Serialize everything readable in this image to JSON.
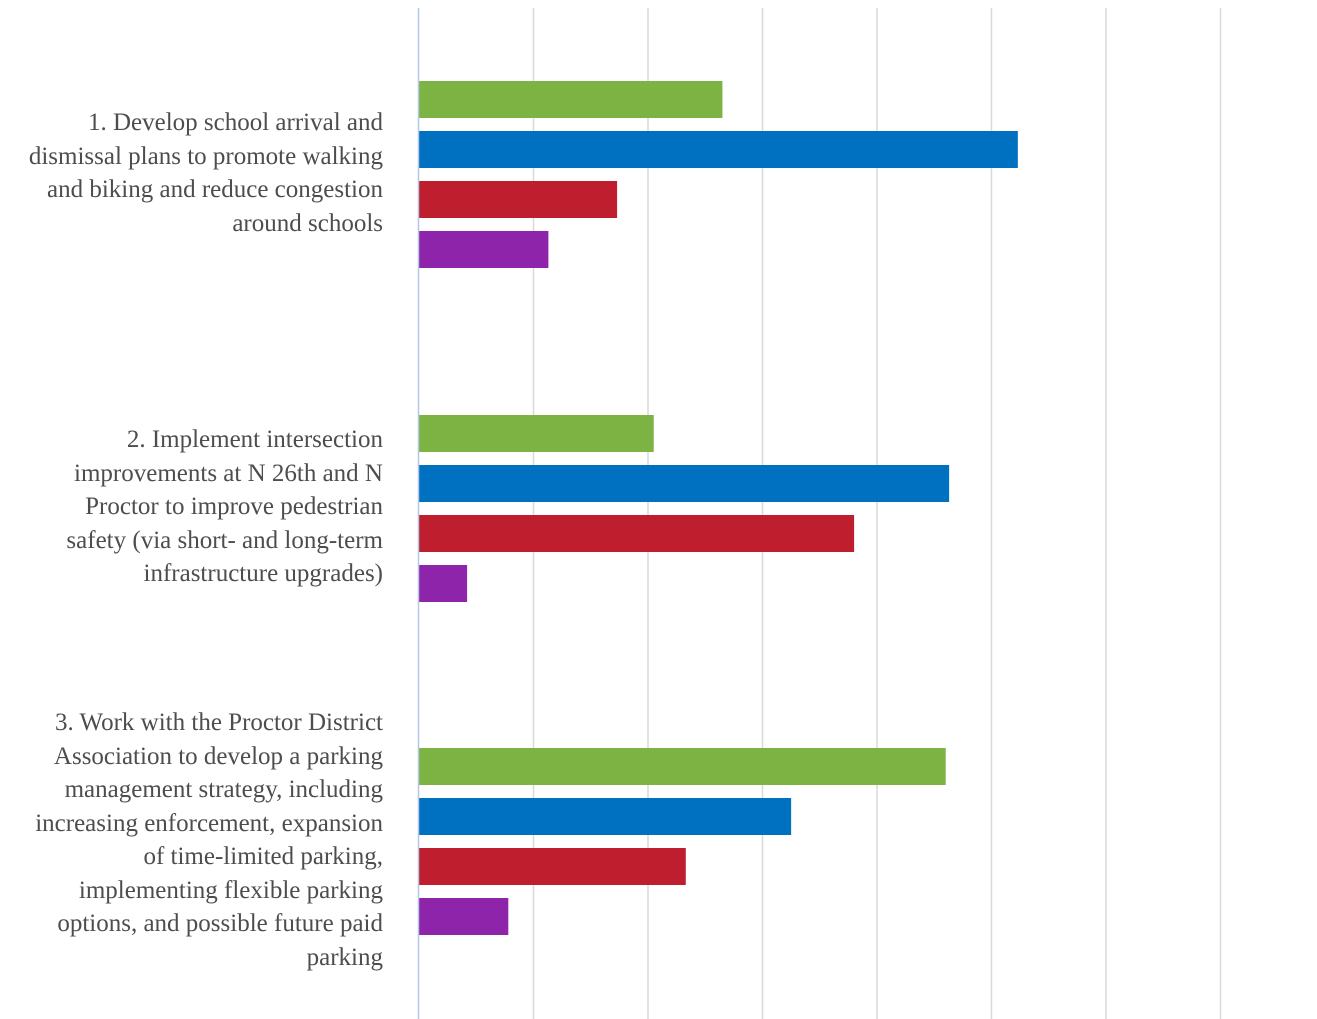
{
  "chart_data": {
    "type": "bar",
    "orientation": "horizontal",
    "grid": true,
    "categories": [
      "1. Develop school arrival and\ndismissal plans to promote walking\nand biking and reduce congestion\naround schools",
      "2. Implement intersection\nimprovements at N 26th and N\nProctor to improve pedestrian\nsafety (via short- and long-term\ninfrastructure upgrades)",
      "3. Work with the Proctor District\nAssociation to develop a parking\nmanagement strategy, including \nincreasing enforcement, expansion\nof time-limited parking,\nimplementing flexible parking\noptions, and possible future paid\nparking"
    ],
    "series": [
      {
        "color": "#7cb342",
        "values": [
          26.5,
          20.5,
          46
        ]
      },
      {
        "color": "#0070c0",
        "values": [
          52.3,
          46.3,
          32.5
        ]
      },
      {
        "color": "#be1e2d",
        "values": [
          17.3,
          38,
          23.3
        ]
      },
      {
        "color": "#8e24aa",
        "values": [
          11.3,
          4.2,
          7.8
        ]
      }
    ],
    "xlim": [
      0,
      80
    ],
    "xticks": [
      0,
      10,
      20,
      30,
      40,
      50,
      60,
      70,
      80
    ]
  }
}
